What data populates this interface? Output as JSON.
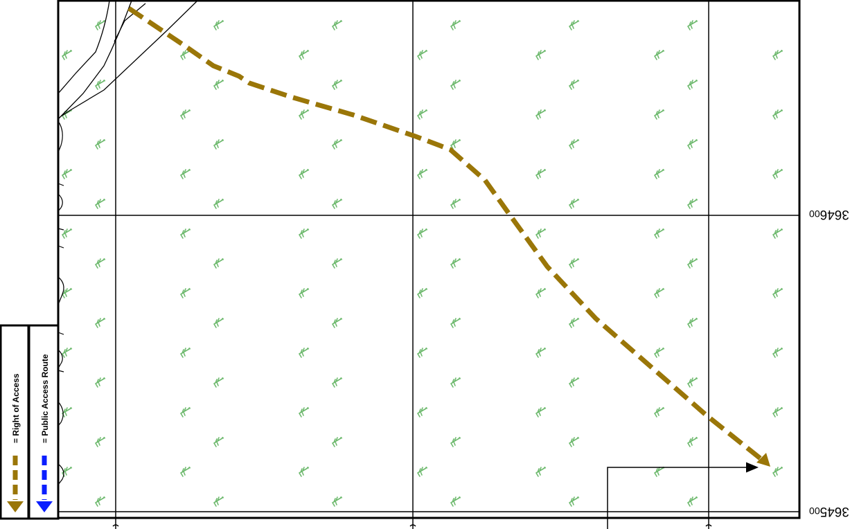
{
  "map": {
    "grid_labels": {
      "northing_upper": "3646",
      "northing_upper_suffix": "00",
      "northing_lower": "3645",
      "northing_lower_suffix": "00"
    },
    "legend": {
      "right_of_access": {
        "label": "= Right of Access",
        "color": "#9a7608"
      },
      "public_access_route": {
        "label": "= Public Access Route",
        "color": "#0a1eff"
      }
    },
    "colors": {
      "vegetation_symbol": "#6db96d",
      "grid": "#000000"
    },
    "icons": {
      "vegetation": "marsh-symbol-icon",
      "route_arrow": "arrow-icon"
    }
  }
}
